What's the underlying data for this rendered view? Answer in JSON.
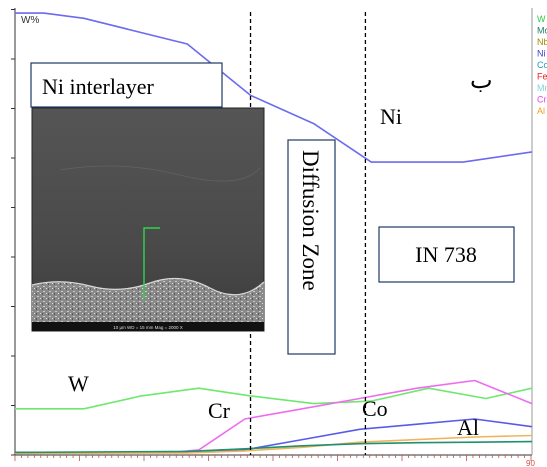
{
  "chart_data": {
    "type": "line",
    "ylabel": "W%",
    "xlim": [
      0,
      90
    ],
    "x_end_label": "90",
    "ylim": [
      0,
      87
    ],
    "grid": false,
    "legend_placement": "right",
    "legend": [
      {
        "name": "W",
        "color": "#2ecc40"
      },
      {
        "name": "Mo",
        "color": "#1f7f6a"
      },
      {
        "name": "Nb",
        "color": "#a08a00"
      },
      {
        "name": "Ni",
        "color": "#3b3bd6"
      },
      {
        "name": "Co",
        "color": "#1a9cc4"
      },
      {
        "name": "Fe",
        "color": "#e52222"
      },
      {
        "name": "Mn",
        "color": "#7fd8d8"
      },
      {
        "name": "Cr",
        "color": "#e845e8"
      },
      {
        "name": "Al",
        "color": "#f0a020"
      }
    ],
    "series": [
      {
        "name": "Ni",
        "color": "#6b6bef",
        "x": [
          0,
          5,
          12,
          30,
          41,
          52,
          62,
          71,
          78,
          90
        ],
        "y": [
          86,
          86,
          85,
          80,
          70,
          64.5,
          57,
          57,
          57,
          59
        ]
      },
      {
        "name": "W",
        "color": "#6fe86f",
        "x": [
          0,
          5,
          12,
          22,
          32,
          41,
          52,
          62,
          72,
          82,
          90
        ],
        "y": [
          9,
          9,
          9,
          11.5,
          13,
          11.5,
          10,
          10.5,
          13,
          11,
          13
        ]
      },
      {
        "name": "Cr",
        "color": "#ef6cef",
        "x": [
          0,
          20,
          27,
          32,
          40,
          50,
          60,
          70,
          80,
          90
        ],
        "y": [
          0.5,
          0.5,
          0.5,
          1,
          7,
          9,
          11,
          13,
          14.5,
          10
        ]
      },
      {
        "name": "Co",
        "color": "#5a5ae8",
        "x": [
          0,
          30,
          40,
          50,
          60,
          70,
          80,
          90
        ],
        "y": [
          0.5,
          0.5,
          1,
          3,
          5,
          6,
          7,
          5.5
        ]
      },
      {
        "name": "Al",
        "color": "#f2b45a",
        "x": [
          0,
          30,
          40,
          50,
          60,
          70,
          80,
          90
        ],
        "y": [
          0.3,
          0.4,
          0.8,
          1.5,
          2.5,
          3,
          3.5,
          3.8
        ]
      },
      {
        "name": "Mo",
        "color": "#1f9070",
        "x": [
          0,
          30,
          40,
          50,
          60,
          70,
          80,
          90
        ],
        "y": [
          0.5,
          0.7,
          1.2,
          1.8,
          2.2,
          2.4,
          2.5,
          2.6
        ]
      }
    ],
    "boundaries_x": [
      41,
      61
    ],
    "annotations": {
      "persian_letter": "ب",
      "ni_interlayer": "Ni interlayer",
      "diffusion_zone": "Diffusion Zone",
      "in738": "IN 738",
      "ni": "Ni",
      "w": "W",
      "cr": "Cr",
      "co": "Co",
      "al": "Al"
    },
    "inset_micrograph": {
      "caption": "10 µm   WD = 15 mm   Mag = 2000 X"
    }
  }
}
